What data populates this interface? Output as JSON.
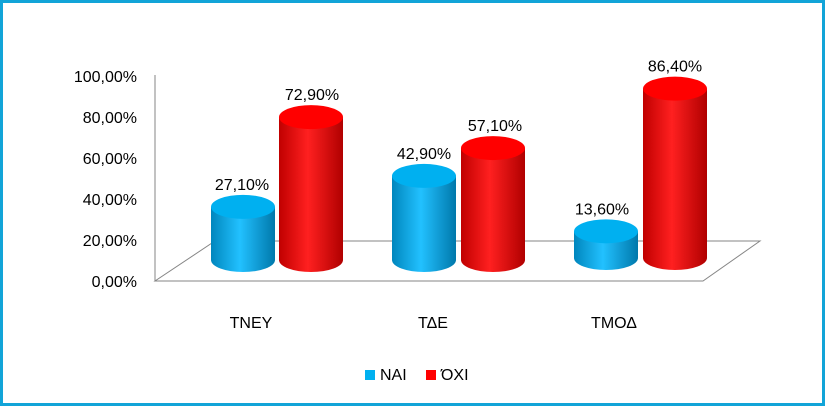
{
  "chart_data": {
    "type": "bar",
    "style": "3d-cylinder",
    "categories": [
      "ΤΝΕΥ",
      "ΤΔΕ",
      "ΤΜΟΔ"
    ],
    "series": [
      {
        "name": "ΝΑΙ",
        "values": [
          27.1,
          42.9,
          13.6
        ],
        "labels": [
          "27,10%",
          "42,90%",
          "13,60%"
        ],
        "color": "#00b0f0"
      },
      {
        "name": "ΌΧΙ",
        "values": [
          72.9,
          57.1,
          86.4
        ],
        "labels": [
          "72,90%",
          "57,10%",
          "86,40%"
        ],
        "color": "#ff0000"
      }
    ],
    "y_ticks": [
      "0,00%",
      "20,00%",
      "40,00%",
      "60,00%",
      "80,00%",
      "100,00%"
    ],
    "ylim": [
      0,
      100
    ],
    "grid": false,
    "legend_position": "bottom"
  },
  "frame": {
    "border_color": "#12a4d8",
    "outer_color": "#000000"
  }
}
